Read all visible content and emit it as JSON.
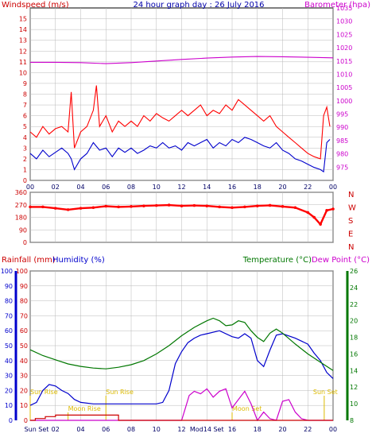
{
  "colors": {
    "wind_avg": "#0000CC",
    "wind_gust": "#FF0000",
    "barometer": "#CC00CC",
    "direction": "#FF0000",
    "rain": "#CC0000",
    "humidity": "#0000CC",
    "temperature": "#007700",
    "dewpoint": "#CC00CC",
    "sun": "#DDBB00",
    "moon": "#DDBB00",
    "grid": "#B8B8B8"
  },
  "chart_data": [
    {
      "type": "line",
      "title": "24 hour graph day : 26 July 2016",
      "ylabel_left": "Windspeed (m/s)",
      "ylabel_right": "Barometer (hpa)",
      "x_ticks": [
        "00",
        "02",
        "04",
        "06",
        "08",
        "10",
        "12",
        "14",
        "16",
        "18",
        "20",
        "22",
        "00"
      ],
      "ylim_left": [
        0,
        16
      ],
      "y_ticks_left": [
        "0",
        "1",
        "2",
        "3",
        "4",
        "5",
        "6",
        "7",
        "8",
        "9",
        "10",
        "11",
        "12",
        "13",
        "14",
        "15"
      ],
      "ylim_right": [
        970,
        1035
      ],
      "y_ticks_right": [
        "975",
        "980",
        "985",
        "990",
        "995",
        "1000",
        "1005",
        "1010",
        "1015",
        "1020",
        "1025",
        "1030",
        "1035"
      ],
      "grid": true,
      "series": [
        {
          "name": "Windspeed",
          "axis": "left",
          "x": [
            0,
            0.5,
            1,
            1.5,
            2,
            2.5,
            3,
            3.25,
            3.5,
            4,
            4.5,
            5,
            5.5,
            6,
            6.5,
            7,
            7.5,
            8,
            8.5,
            9,
            9.5,
            10,
            10.5,
            11,
            11.5,
            12,
            12.5,
            13,
            13.5,
            14,
            14.5,
            15,
            15.5,
            16,
            16.5,
            17,
            17.5,
            18,
            18.5,
            19,
            19.5,
            20,
            20.5,
            21,
            21.5,
            22,
            22.5,
            23,
            23.25,
            23.5,
            23.75
          ],
          "values": [
            2.5,
            2,
            2.8,
            2.2,
            2.6,
            3,
            2.5,
            2,
            1,
            2,
            2.5,
            3.5,
            2.8,
            3,
            2.2,
            3,
            2.6,
            3,
            2.5,
            2.8,
            3.2,
            3,
            3.5,
            3,
            3.2,
            2.8,
            3.5,
            3.2,
            3.5,
            3.8,
            3,
            3.5,
            3.2,
            3.8,
            3.5,
            4,
            3.8,
            3.5,
            3.2,
            3,
            3.5,
            2.8,
            2.5,
            2,
            1.8,
            1.5,
            1.2,
            1,
            0.8,
            3.5,
            3.8
          ]
        },
        {
          "name": "Gust",
          "axis": "left",
          "x": [
            0,
            0.5,
            1,
            1.5,
            2,
            2.5,
            3,
            3.25,
            3.5,
            4,
            4.5,
            5,
            5.25,
            5.5,
            6,
            6.5,
            7,
            7.5,
            8,
            8.5,
            9,
            9.5,
            10,
            10.5,
            11,
            11.5,
            12,
            12.5,
            13,
            13.5,
            14,
            14.5,
            15,
            15.5,
            16,
            16.5,
            17,
            17.5,
            18,
            18.5,
            19,
            19.5,
            20,
            20.5,
            21,
            21.5,
            22,
            22.5,
            23,
            23.25,
            23.5,
            23.75
          ],
          "values": [
            4.5,
            4,
            5,
            4.3,
            4.8,
            5,
            4.5,
            8.2,
            3,
            4.5,
            5,
            6.5,
            8.8,
            5,
            6,
            4.5,
            5.5,
            5,
            5.5,
            5,
            6,
            5.5,
            6.2,
            5.8,
            5.5,
            6,
            6.5,
            6,
            6.5,
            7,
            6,
            6.5,
            6.2,
            7,
            6.5,
            7.5,
            7,
            6.5,
            6,
            5.5,
            6,
            5,
            4.5,
            4,
            3.5,
            3,
            2.5,
            2.2,
            2,
            6,
            6.8,
            5
          ]
        },
        {
          "name": "Barometer",
          "axis": "right",
          "x": [
            0,
            2,
            4,
            6,
            8,
            10,
            12,
            14,
            16,
            18,
            20,
            22,
            24
          ],
          "values": [
            1014.5,
            1014.5,
            1014.4,
            1014,
            1014.4,
            1015,
            1015.6,
            1016.1,
            1016.5,
            1016.7,
            1016.6,
            1016.4,
            1016.2
          ]
        }
      ]
    },
    {
      "type": "scatter",
      "ylabel_right": [
        "N",
        "W",
        "S",
        "E",
        "N"
      ],
      "ylim": [
        0,
        360
      ],
      "y_ticks": [
        "0",
        "90",
        "180",
        "270",
        "360"
      ],
      "x_ticks": [
        "00",
        "02",
        "04",
        "06",
        "08",
        "10",
        "12",
        "14",
        "16",
        "18",
        "20",
        "22",
        "00"
      ],
      "series": [
        {
          "name": "Wind direction",
          "x": [
            0,
            1,
            2,
            3,
            4,
            5,
            6,
            7,
            8,
            9,
            10,
            11,
            12,
            13,
            14,
            15,
            16,
            17,
            18,
            19,
            20,
            21,
            22,
            22.5,
            23,
            23.5,
            24
          ],
          "values": [
            255,
            255,
            245,
            235,
            245,
            250,
            260,
            255,
            258,
            262,
            265,
            268,
            262,
            265,
            262,
            255,
            250,
            255,
            262,
            266,
            258,
            250,
            215,
            180,
            130,
            230,
            240
          ]
        }
      ]
    },
    {
      "type": "line",
      "ylabel_left": "Rainfall (mm)",
      "ylabel_left2": "Humidity (%)",
      "ylabel_right": "Temperature (°C)",
      "ylabel_right2": "Dew Point (°C)",
      "ylim_left": [
        0,
        100
      ],
      "y_ticks_left": [
        "0",
        "10",
        "20",
        "30",
        "40",
        "50",
        "60",
        "70",
        "80",
        "90",
        "100"
      ],
      "y_ticks_rain": [
        "0",
        "10",
        "20",
        "30",
        "40",
        "50",
        "60",
        "70",
        "80",
        "90",
        "100"
      ],
      "ylim_right": [
        8,
        26
      ],
      "y_ticks_right": [
        "8",
        "10",
        "12",
        "14",
        "16",
        "18",
        "20",
        "22",
        "24",
        "26"
      ],
      "x_ticks": [
        "Sun Set",
        "02",
        "04",
        "06",
        "08",
        "10",
        "12",
        "Mod14 Set",
        "16",
        "18",
        "20",
        "22",
        "00"
      ],
      "series": [
        {
          "name": "Humidity",
          "axis": "left",
          "x": [
            0,
            0.5,
            1,
            1.5,
            2,
            2.5,
            3,
            3.5,
            4,
            5,
            6,
            7,
            8,
            9,
            10,
            10.5,
            11,
            11.5,
            12,
            12.5,
            13,
            13.5,
            14,
            15,
            16,
            16.5,
            17,
            17.5,
            18,
            18.5,
            19,
            19.5,
            20,
            21,
            22,
            22.5,
            23,
            23.5,
            24
          ],
          "values": [
            10,
            12,
            20,
            24,
            23,
            20,
            18,
            14,
            12,
            11,
            11,
            11,
            11,
            11,
            11,
            12,
            20,
            38,
            46,
            52,
            55,
            57,
            58,
            60,
            56,
            55,
            58,
            55,
            40,
            36,
            47,
            57,
            58,
            55,
            51,
            45,
            40,
            32,
            28
          ]
        },
        {
          "name": "Temperature",
          "axis": "right",
          "x": [
            0,
            1,
            2,
            3,
            4,
            5,
            6,
            7,
            8,
            9,
            10,
            11,
            12,
            13,
            14,
            14.5,
            15,
            15.5,
            16,
            16.5,
            17,
            17.5,
            18,
            18.5,
            19,
            19.5,
            20,
            21,
            22,
            23,
            24
          ],
          "values": [
            16.5,
            15.8,
            15.3,
            14.8,
            14.5,
            14.3,
            14.2,
            14.4,
            14.7,
            15.2,
            16,
            17,
            18.2,
            19.2,
            20,
            20.3,
            20,
            19.4,
            19.5,
            20,
            19.8,
            18.8,
            18,
            17.5,
            18.5,
            19,
            18.5,
            17.2,
            16,
            15,
            14
          ]
        },
        {
          "name": "Dew Point",
          "axis": "right",
          "x": [
            0,
            11,
            12,
            12.3,
            12.6,
            13,
            13.5,
            14,
            14.5,
            15,
            15.5,
            16,
            16.5,
            17,
            17.5,
            18,
            18.5,
            19,
            19.5,
            20,
            20.5,
            21,
            21.5,
            22,
            24
          ],
          "values": [
            8,
            8,
            8,
            9.5,
            11,
            11.5,
            11.2,
            11.8,
            10.8,
            11.5,
            11.8,
            9.5,
            10.5,
            11.5,
            10,
            8,
            9,
            8.2,
            8,
            10.3,
            10.5,
            9,
            8.2,
            8,
            8
          ]
        },
        {
          "name": "Rainfall",
          "axis": "left",
          "x": [
            0,
            0.4,
            0.4,
            1.2,
            1.2,
            2.0,
            2.0,
            7.0,
            7.0,
            24
          ],
          "values": [
            0,
            0,
            1.2,
            1.2,
            2.5,
            2.5,
            3.5,
            3.5,
            0,
            0
          ]
        }
      ],
      "annotations": [
        {
          "text": "Sun Rise",
          "x": 0
        },
        {
          "text": "Moon Rise",
          "x": 3
        },
        {
          "text": "Sun Rise",
          "x": 6
        },
        {
          "text": "Moon Set",
          "x": 16
        },
        {
          "text": "Sun Set",
          "x": 23.3
        }
      ]
    }
  ]
}
